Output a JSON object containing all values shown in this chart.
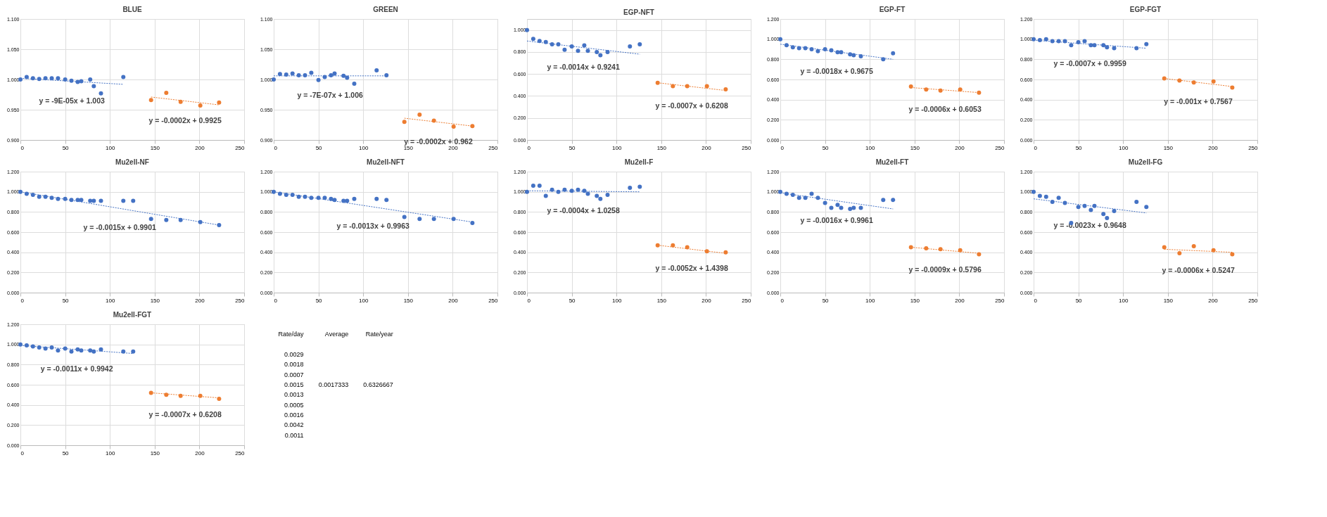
{
  "chart_data": [
    {
      "type": "scatter",
      "title": "BLUE",
      "xlim": [
        0,
        250
      ],
      "xticks": [
        0,
        50,
        100,
        150,
        200,
        250
      ],
      "ylim": [
        0.9,
        1.1
      ],
      "yticks": [
        {
          "value": 0.9,
          "label": "0.900"
        },
        {
          "value": 0.95,
          "label": "0.950"
        },
        {
          "value": 1.0,
          "label": "1.000"
        },
        {
          "value": 1.05,
          "label": "1.050"
        },
        {
          "value": 1.1,
          "label": "1.100"
        }
      ],
      "grid": true,
      "series": [
        {
          "color": "#4472c4",
          "marker": "circle",
          "x": [
            0,
            7,
            14,
            21,
            28,
            35,
            42,
            50,
            57,
            64,
            68,
            78,
            82,
            90,
            115
          ],
          "values": [
            1.0,
            1.004,
            1.002,
            1.001,
            1.002,
            1.002,
            1.002,
            1.0,
            0.998,
            0.996,
            0.997,
            1.0,
            0.989,
            0.977,
            1.004
          ]
        },
        {
          "color": "#ed7d31",
          "marker": "circle",
          "x": [
            146,
            163,
            179,
            201,
            222
          ],
          "values": [
            0.966,
            0.978,
            0.963,
            0.957,
            0.962
          ]
        },
        {
          "type": "line",
          "line_style": "dotted",
          "color": "#4472c4",
          "x": [
            0,
            115
          ],
          "values": [
            1.002,
            0.992
          ]
        },
        {
          "type": "line",
          "line_style": "dotted",
          "color": "#ed7d31",
          "x": [
            146,
            222
          ],
          "values": [
            0.971,
            0.958
          ]
        }
      ],
      "annotations": [
        "y = -9E-05x + 1.003",
        "y = -0.0002x + 0.9925"
      ]
    },
    {
      "type": "scatter",
      "title": "GREEN",
      "xlim": [
        0,
        250
      ],
      "xticks": [
        0,
        50,
        100,
        150,
        200,
        250
      ],
      "ylim": [
        0.9,
        1.1
      ],
      "yticks": [
        {
          "value": 0.9,
          "label": "0.900"
        },
        {
          "value": 0.95,
          "label": "0.950"
        },
        {
          "value": 1.0,
          "label": "1.000"
        },
        {
          "value": 1.05,
          "label": "1.050"
        },
        {
          "value": 1.1,
          "label": "1.100"
        }
      ],
      "grid": true,
      "series": [
        {
          "color": "#4472c4",
          "marker": "circle",
          "x": [
            0,
            7,
            14,
            21,
            28,
            35,
            42,
            50,
            57,
            64,
            68,
            78,
            82,
            90,
            115,
            126
          ],
          "values": [
            1.0,
            1.009,
            1.008,
            1.01,
            1.007,
            1.007,
            1.011,
            0.999,
            1.004,
            1.007,
            1.01,
            1.006,
            1.003,
            0.993,
            1.015,
            1.007
          ]
        },
        {
          "color": "#ed7d31",
          "marker": "circle",
          "x": [
            146,
            163,
            179,
            201,
            222
          ],
          "values": [
            0.93,
            0.942,
            0.932,
            0.922,
            0.923
          ]
        },
        {
          "type": "line",
          "line_style": "dotted",
          "color": "#4472c4",
          "x": [
            0,
            126
          ],
          "values": [
            1.006,
            1.006
          ]
        },
        {
          "type": "line",
          "line_style": "dotted",
          "color": "#ed7d31",
          "x": [
            146,
            222
          ],
          "values": [
            0.936,
            0.923
          ]
        }
      ],
      "annotations": [
        "y = -7E-07x + 1.006",
        "y = -0.0002x + 0.962"
      ]
    },
    {
      "type": "scatter",
      "title": "EGP-NFT",
      "xlim": [
        0,
        250
      ],
      "xticks": [
        0,
        50,
        100,
        150,
        200,
        250
      ],
      "ylim": [
        0,
        1.1
      ],
      "yticks": [
        {
          "value": 0,
          "label": "0.000"
        },
        {
          "value": 0.2,
          "label": "0.200"
        },
        {
          "value": 0.4,
          "label": "0.400"
        },
        {
          "value": 0.6,
          "label": "0.600"
        },
        {
          "value": 0.8,
          "label": "0.800"
        },
        {
          "value": 1.0,
          "label": "1.000"
        }
      ],
      "grid": true,
      "series": [
        {
          "color": "#4472c4",
          "marker": "circle",
          "x": [
            0,
            7,
            14,
            21,
            28,
            35,
            42,
            50,
            57,
            64,
            68,
            78,
            82,
            90,
            115,
            126
          ],
          "values": [
            1.0,
            0.92,
            0.9,
            0.89,
            0.87,
            0.87,
            0.82,
            0.85,
            0.81,
            0.86,
            0.81,
            0.8,
            0.77,
            0.8,
            0.85,
            0.87
          ]
        },
        {
          "color": "#ed7d31",
          "marker": "circle",
          "x": [
            146,
            163,
            179,
            201,
            222
          ],
          "values": [
            0.52,
            0.49,
            0.49,
            0.49,
            0.46
          ]
        },
        {
          "type": "line",
          "line_style": "dotted",
          "color": "#4472c4",
          "x": [
            0,
            126
          ],
          "values": [
            0.9,
            0.78
          ]
        },
        {
          "type": "line",
          "line_style": "dotted",
          "color": "#ed7d31",
          "x": [
            146,
            222
          ],
          "values": [
            0.52,
            0.45
          ]
        }
      ],
      "annotations": [
        "y = -0.0014x + 0.9241",
        "y = -0.0007x + 0.6208"
      ]
    },
    {
      "type": "scatter",
      "title": "EGP-FT",
      "xlim": [
        0,
        250
      ],
      "xticks": [
        0,
        50,
        100,
        150,
        200,
        250
      ],
      "ylim": [
        0,
        1.2
      ],
      "yticks": [
        {
          "value": 0,
          "label": "0.000"
        },
        {
          "value": 0.2,
          "label": "0.200"
        },
        {
          "value": 0.4,
          "label": "0.400"
        },
        {
          "value": 0.6,
          "label": "0.600"
        },
        {
          "value": 0.8,
          "label": "0.800"
        },
        {
          "value": 1.0,
          "label": "1.000"
        },
        {
          "value": 1.2,
          "label": "1.200"
        }
      ],
      "grid": true,
      "series": [
        {
          "color": "#4472c4",
          "marker": "circle",
          "x": [
            0,
            7,
            14,
            21,
            28,
            35,
            42,
            50,
            57,
            64,
            68,
            78,
            82,
            90,
            115,
            126
          ],
          "values": [
            1.0,
            0.94,
            0.92,
            0.91,
            0.91,
            0.9,
            0.88,
            0.9,
            0.89,
            0.87,
            0.87,
            0.85,
            0.84,
            0.83,
            0.8,
            0.86
          ]
        },
        {
          "color": "#ed7d31",
          "marker": "circle",
          "x": [
            146,
            163,
            179,
            201,
            222
          ],
          "values": [
            0.53,
            0.5,
            0.49,
            0.5,
            0.47
          ]
        },
        {
          "type": "line",
          "line_style": "dotted",
          "color": "#4472c4",
          "x": [
            0,
            126
          ],
          "values": [
            0.95,
            0.8
          ]
        },
        {
          "type": "line",
          "line_style": "dotted",
          "color": "#ed7d31",
          "x": [
            146,
            222
          ],
          "values": [
            0.52,
            0.47
          ]
        }
      ],
      "annotations": [
        "y = -0.0018x + 0.9675",
        "y = -0.0006x + 0.6053"
      ]
    },
    {
      "type": "scatter",
      "title": "EGP-FGT",
      "xlim": [
        0,
        250
      ],
      "xticks": [
        0,
        50,
        100,
        150,
        200,
        250
      ],
      "ylim": [
        0,
        1.2
      ],
      "yticks": [
        {
          "value": 0,
          "label": "0.000"
        },
        {
          "value": 0.2,
          "label": "0.200"
        },
        {
          "value": 0.4,
          "label": "0.400"
        },
        {
          "value": 0.6,
          "label": "0.600"
        },
        {
          "value": 0.8,
          "label": "0.800"
        },
        {
          "value": 1.0,
          "label": "1.000"
        },
        {
          "value": 1.2,
          "label": "1.200"
        }
      ],
      "grid": true,
      "series": [
        {
          "color": "#4472c4",
          "marker": "circle",
          "x": [
            0,
            7,
            14,
            21,
            28,
            35,
            42,
            50,
            57,
            64,
            68,
            78,
            82,
            90,
            115,
            126
          ],
          "values": [
            1.0,
            0.99,
            1.0,
            0.98,
            0.98,
            0.98,
            0.94,
            0.97,
            0.98,
            0.94,
            0.94,
            0.94,
            0.92,
            0.91,
            0.91,
            0.95
          ]
        },
        {
          "color": "#ed7d31",
          "marker": "circle",
          "x": [
            146,
            163,
            179,
            201,
            222
          ],
          "values": [
            0.61,
            0.59,
            0.57,
            0.58,
            0.52
          ]
        },
        {
          "type": "line",
          "line_style": "dotted",
          "color": "#4472c4",
          "x": [
            0,
            126
          ],
          "values": [
            0.99,
            0.91
          ]
        },
        {
          "type": "line",
          "line_style": "dotted",
          "color": "#ed7d31",
          "x": [
            146,
            222
          ],
          "values": [
            0.61,
            0.53
          ]
        }
      ],
      "annotations": [
        "y = -0.0007x + 0.9959",
        "y = -0.001x + 0.7567"
      ]
    },
    {
      "type": "scatter",
      "title": "Mu2ell-NF",
      "xlim": [
        0,
        250
      ],
      "xticks": [
        0,
        50,
        100,
        150,
        200,
        250
      ],
      "ylim": [
        0,
        1.2
      ],
      "yticks": [
        {
          "value": 0,
          "label": "0.000"
        },
        {
          "value": 0.2,
          "label": "0.200"
        },
        {
          "value": 0.4,
          "label": "0.400"
        },
        {
          "value": 0.6,
          "label": "0.600"
        },
        {
          "value": 0.8,
          "label": "0.800"
        },
        {
          "value": 1.0,
          "label": "1.000"
        },
        {
          "value": 1.2,
          "label": "1.200"
        }
      ],
      "grid": true,
      "series": [
        {
          "color": "#4472c4",
          "marker": "circle",
          "x": [
            0,
            7,
            14,
            21,
            28,
            35,
            42,
            50,
            57,
            64,
            68,
            78,
            82,
            90,
            115,
            126,
            146,
            163,
            179,
            201,
            222
          ],
          "values": [
            1.0,
            0.98,
            0.97,
            0.95,
            0.95,
            0.94,
            0.93,
            0.93,
            0.92,
            0.92,
            0.92,
            0.91,
            0.91,
            0.91,
            0.91,
            0.91,
            0.73,
            0.72,
            0.72,
            0.7,
            0.67
          ]
        },
        {
          "type": "line",
          "line_style": "dotted",
          "color": "#4472c4",
          "x": [
            0,
            222
          ],
          "values": [
            1.0,
            0.67
          ]
        }
      ],
      "annotations": [
        "y = -0.0015x + 0.9901"
      ]
    },
    {
      "type": "scatter",
      "title": "Mu2ell-NFT",
      "xlim": [
        0,
        250
      ],
      "xticks": [
        0,
        50,
        100,
        150,
        200,
        250
      ],
      "ylim": [
        0,
        1.2
      ],
      "yticks": [
        {
          "value": 0,
          "label": "0.000"
        },
        {
          "value": 0.2,
          "label": "0.200"
        },
        {
          "value": 0.4,
          "label": "0.400"
        },
        {
          "value": 0.6,
          "label": "0.600"
        },
        {
          "value": 0.8,
          "label": "0.800"
        },
        {
          "value": 1.0,
          "label": "1.000"
        },
        {
          "value": 1.2,
          "label": "1.200"
        }
      ],
      "grid": true,
      "series": [
        {
          "color": "#4472c4",
          "marker": "circle",
          "x": [
            0,
            7,
            14,
            21,
            28,
            35,
            42,
            50,
            57,
            64,
            68,
            78,
            82,
            90,
            115,
            126,
            146,
            163,
            179,
            201,
            222
          ],
          "values": [
            1.0,
            0.98,
            0.97,
            0.97,
            0.95,
            0.95,
            0.94,
            0.94,
            0.94,
            0.93,
            0.92,
            0.91,
            0.91,
            0.93,
            0.93,
            0.92,
            0.75,
            0.73,
            0.73,
            0.73,
            0.69
          ]
        },
        {
          "type": "line",
          "line_style": "dotted",
          "color": "#4472c4",
          "x": [
            0,
            222
          ],
          "values": [
            1.0,
            0.7
          ]
        }
      ],
      "annotations": [
        "y = -0.0013x + 0.9963"
      ]
    },
    {
      "type": "scatter",
      "title": "Mu2ell-F",
      "xlim": [
        0,
        250
      ],
      "xticks": [
        0,
        50,
        100,
        150,
        200,
        250
      ],
      "ylim": [
        0,
        1.2
      ],
      "yticks": [
        {
          "value": 0,
          "label": "0.000"
        },
        {
          "value": 0.2,
          "label": "0.200"
        },
        {
          "value": 0.4,
          "label": "0.400"
        },
        {
          "value": 0.6,
          "label": "0.600"
        },
        {
          "value": 0.8,
          "label": "0.800"
        },
        {
          "value": 1.0,
          "label": "1.000"
        },
        {
          "value": 1.2,
          "label": "1.200"
        }
      ],
      "grid": true,
      "series": [
        {
          "color": "#4472c4",
          "marker": "circle",
          "x": [
            0,
            7,
            14,
            21,
            28,
            35,
            42,
            50,
            57,
            64,
            68,
            78,
            82,
            90,
            115,
            126
          ],
          "values": [
            1.0,
            1.06,
            1.06,
            0.96,
            1.02,
            1.0,
            1.02,
            1.01,
            1.02,
            1.01,
            0.98,
            0.96,
            0.93,
            0.97,
            1.04,
            1.05
          ]
        },
        {
          "color": "#ed7d31",
          "marker": "circle",
          "x": [
            146,
            163,
            179,
            201,
            222
          ],
          "values": [
            0.47,
            0.47,
            0.45,
            0.41,
            0.4
          ]
        },
        {
          "type": "line",
          "line_style": "dotted",
          "color": "#4472c4",
          "x": [
            0,
            126
          ],
          "values": [
            1.01,
            1.0
          ]
        },
        {
          "type": "line",
          "line_style": "dotted",
          "color": "#ed7d31",
          "x": [
            146,
            222
          ],
          "values": [
            0.47,
            0.39
          ]
        }
      ],
      "annotations": [
        "y = -0.0004x + 1.0258",
        "y = -0.0052x + 1.4398"
      ]
    },
    {
      "type": "scatter",
      "title": "Mu2ell-FT",
      "xlim": [
        0,
        250
      ],
      "xticks": [
        0,
        50,
        100,
        150,
        200,
        250
      ],
      "ylim": [
        0,
        1.2
      ],
      "yticks": [
        {
          "value": 0,
          "label": "0.000"
        },
        {
          "value": 0.2,
          "label": "0.200"
        },
        {
          "value": 0.4,
          "label": "0.400"
        },
        {
          "value": 0.6,
          "label": "0.600"
        },
        {
          "value": 0.8,
          "label": "0.800"
        },
        {
          "value": 1.0,
          "label": "1.000"
        },
        {
          "value": 1.2,
          "label": "1.200"
        }
      ],
      "grid": true,
      "series": [
        {
          "color": "#4472c4",
          "marker": "circle",
          "x": [
            0,
            7,
            14,
            21,
            28,
            35,
            42,
            50,
            57,
            64,
            68,
            78,
            82,
            90,
            115,
            126
          ],
          "values": [
            1.0,
            0.98,
            0.97,
            0.94,
            0.94,
            0.98,
            0.94,
            0.89,
            0.84,
            0.87,
            0.84,
            0.83,
            0.84,
            0.84,
            0.92,
            0.92
          ]
        },
        {
          "color": "#ed7d31",
          "marker": "circle",
          "x": [
            146,
            163,
            179,
            201,
            222
          ],
          "values": [
            0.45,
            0.44,
            0.43,
            0.42,
            0.38
          ]
        },
        {
          "type": "line",
          "line_style": "dotted",
          "color": "#4472c4",
          "x": [
            0,
            126
          ],
          "values": [
            0.99,
            0.83
          ]
        },
        {
          "type": "line",
          "line_style": "dotted",
          "color": "#ed7d31",
          "x": [
            146,
            222
          ],
          "values": [
            0.45,
            0.39
          ]
        }
      ],
      "annotations": [
        "y = -0.0016x + 0.9961",
        "y = -0.0009x + 0.5796"
      ]
    },
    {
      "type": "scatter",
      "title": "Mu2ell-FG",
      "xlim": [
        0,
        250
      ],
      "xticks": [
        0,
        50,
        100,
        150,
        200,
        250
      ],
      "ylim": [
        0,
        1.2
      ],
      "yticks": [
        {
          "value": 0,
          "label": "0.000"
        },
        {
          "value": 0.2,
          "label": "0.200"
        },
        {
          "value": 0.4,
          "label": "0.400"
        },
        {
          "value": 0.6,
          "label": "0.600"
        },
        {
          "value": 0.8,
          "label": "0.800"
        },
        {
          "value": 1.0,
          "label": "1.000"
        },
        {
          "value": 1.2,
          "label": "1.200"
        }
      ],
      "grid": true,
      "series": [
        {
          "color": "#4472c4",
          "marker": "circle",
          "x": [
            0,
            7,
            14,
            21,
            28,
            35,
            42,
            50,
            57,
            64,
            68,
            78,
            82,
            90,
            115,
            126
          ],
          "values": [
            1.0,
            0.96,
            0.95,
            0.9,
            0.94,
            0.89,
            0.69,
            0.85,
            0.86,
            0.82,
            0.86,
            0.78,
            0.74,
            0.81,
            0.9,
            0.85
          ]
        },
        {
          "color": "#ed7d31",
          "marker": "circle",
          "x": [
            146,
            163,
            179,
            201,
            222
          ],
          "values": [
            0.45,
            0.39,
            0.46,
            0.42,
            0.38
          ]
        },
        {
          "type": "line",
          "line_style": "dotted",
          "color": "#4472c4",
          "x": [
            0,
            126
          ],
          "values": [
            0.93,
            0.79
          ]
        },
        {
          "type": "line",
          "line_style": "dotted",
          "color": "#ed7d31",
          "x": [
            146,
            222
          ],
          "values": [
            0.43,
            0.4
          ]
        }
      ],
      "annotations": [
        "y = -0.0023x + 0.9648",
        "y = -0.0006x + 0.5247"
      ]
    },
    {
      "type": "scatter",
      "title": "Mu2ell-FGT",
      "xlim": [
        0,
        250
      ],
      "xticks": [
        0,
        50,
        100,
        150,
        200,
        250
      ],
      "ylim": [
        0,
        1.2
      ],
      "yticks": [
        {
          "value": 0,
          "label": "0.000"
        },
        {
          "value": 0.2,
          "label": "0.200"
        },
        {
          "value": 0.4,
          "label": "0.400"
        },
        {
          "value": 0.6,
          "label": "0.600"
        },
        {
          "value": 0.8,
          "label": "0.800"
        },
        {
          "value": 1.0,
          "label": "1.000"
        },
        {
          "value": 1.2,
          "label": "1.200"
        }
      ],
      "grid": true,
      "series": [
        {
          "color": "#4472c4",
          "marker": "circle",
          "x": [
            0,
            7,
            14,
            21,
            28,
            35,
            42,
            50,
            57,
            64,
            68,
            78,
            82,
            90,
            115,
            126
          ],
          "values": [
            1.0,
            0.99,
            0.98,
            0.97,
            0.96,
            0.97,
            0.94,
            0.96,
            0.93,
            0.95,
            0.94,
            0.94,
            0.93,
            0.95,
            0.93,
            0.93
          ]
        },
        {
          "color": "#ed7d31",
          "marker": "circle",
          "x": [
            146,
            163,
            179,
            201,
            222
          ],
          "values": [
            0.52,
            0.5,
            0.49,
            0.49,
            0.46
          ]
        },
        {
          "type": "line",
          "line_style": "dotted",
          "color": "#4472c4",
          "x": [
            0,
            126
          ],
          "values": [
            0.99,
            0.91
          ]
        },
        {
          "type": "line",
          "line_style": "dotted",
          "color": "#ed7d31",
          "x": [
            146,
            222
          ],
          "values": [
            0.52,
            0.47
          ]
        }
      ],
      "annotations": [
        "y = -0.0011x + 0.9942",
        "y = -0.0007x + 0.6208"
      ]
    },
    {
      "type": "other",
      "annotations": [
        "Rate/day",
        "Average",
        "Rate/year",
        "0.0029",
        "0.0018",
        "0.0007",
        "0.0015",
        "0.0017333",
        "0.6326667",
        "0.0013",
        "0.0005",
        "0.0016",
        "0.0042",
        "0.0011"
      ]
    }
  ]
}
